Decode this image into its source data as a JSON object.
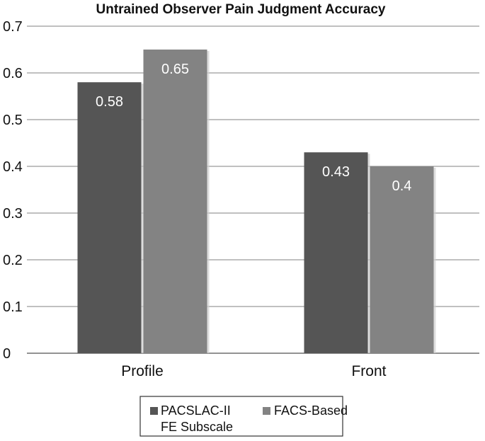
{
  "chart_data": {
    "type": "bar",
    "title": "Untrained Observer Pain Judgment Accuracy",
    "xlabel": "",
    "ylabel": "",
    "categories": [
      "Profile",
      "Front"
    ],
    "series": [
      {
        "name": "PACSLAC-II FE Subscale",
        "legend_lines": [
          "PACSLAC-II",
          "FE Subscale"
        ],
        "values": [
          0.58,
          0.43
        ],
        "value_labels": [
          "0.58",
          "0.43"
        ],
        "color": "#555555"
      },
      {
        "name": "FACS-Based",
        "legend_lines": [
          "FACS-Based"
        ],
        "values": [
          0.65,
          0.4
        ],
        "value_labels": [
          "0.65",
          "0.4"
        ],
        "color": "#838383"
      }
    ],
    "ylim": [
      0,
      0.7
    ],
    "yticks": [
      "0",
      "0.1",
      "0.2",
      "0.3",
      "0.4",
      "0.5",
      "0.6",
      "0.7"
    ],
    "grid": true,
    "legend_position": "bottom"
  }
}
